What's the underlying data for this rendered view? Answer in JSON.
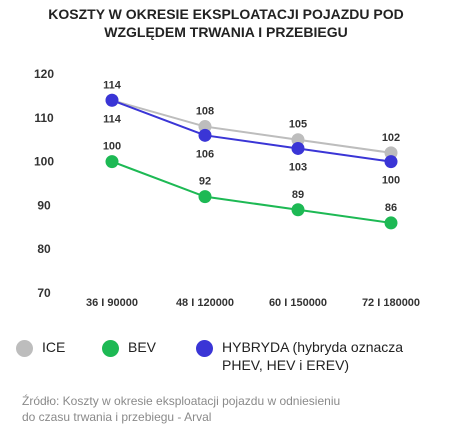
{
  "title_lines": [
    "KOSZTY W OKRESIE EKSPLOATACJI POJAZDU POD",
    "WZGLĘDEM TRWANIA I PRZEBIEGU"
  ],
  "chart_data": {
    "type": "line",
    "title": "KOSZTY W OKRESIE EKSPLOATACJI POJAZDU POD WZGLĘDEM TRWANIA I PRZEBIEGU",
    "categories": [
      "36 I 90000",
      "48 I 120000",
      "60 I 150000",
      "72 I 180000"
    ],
    "ylim": [
      70,
      120
    ],
    "yticks": [
      70,
      80,
      90,
      100,
      110,
      120
    ],
    "grid": false,
    "legend_position": "bottom",
    "series": [
      {
        "name": "ICE",
        "values": [
          114,
          108,
          105,
          102
        ],
        "color": "#bdbdbd",
        "label_position": "above"
      },
      {
        "name": "BEV",
        "values": [
          100,
          92,
          89,
          86
        ],
        "color": "#1db954",
        "label_position": "above"
      },
      {
        "name": "HYBRYDA (hybryda oznacza PHEV, HEV i EREV)",
        "values": [
          114,
          106,
          103,
          100
        ],
        "color": "#3a35d6",
        "label_position": "below"
      }
    ]
  },
  "legend": [
    {
      "label_lines": [
        "ICE"
      ],
      "color": "#bdbdbd"
    },
    {
      "label_lines": [
        "BEV"
      ],
      "color": "#1db954"
    },
    {
      "label_lines": [
        "HYBRYDA (hybryda oznacza",
        "PHEV, HEV i EREV)"
      ],
      "color": "#3a35d6"
    }
  ],
  "source_lines": [
    "Źródło: Koszty w okresie eksploatacji pojazdu w odniesieniu",
    "do czasu trwania i przebiegu - Arval"
  ]
}
